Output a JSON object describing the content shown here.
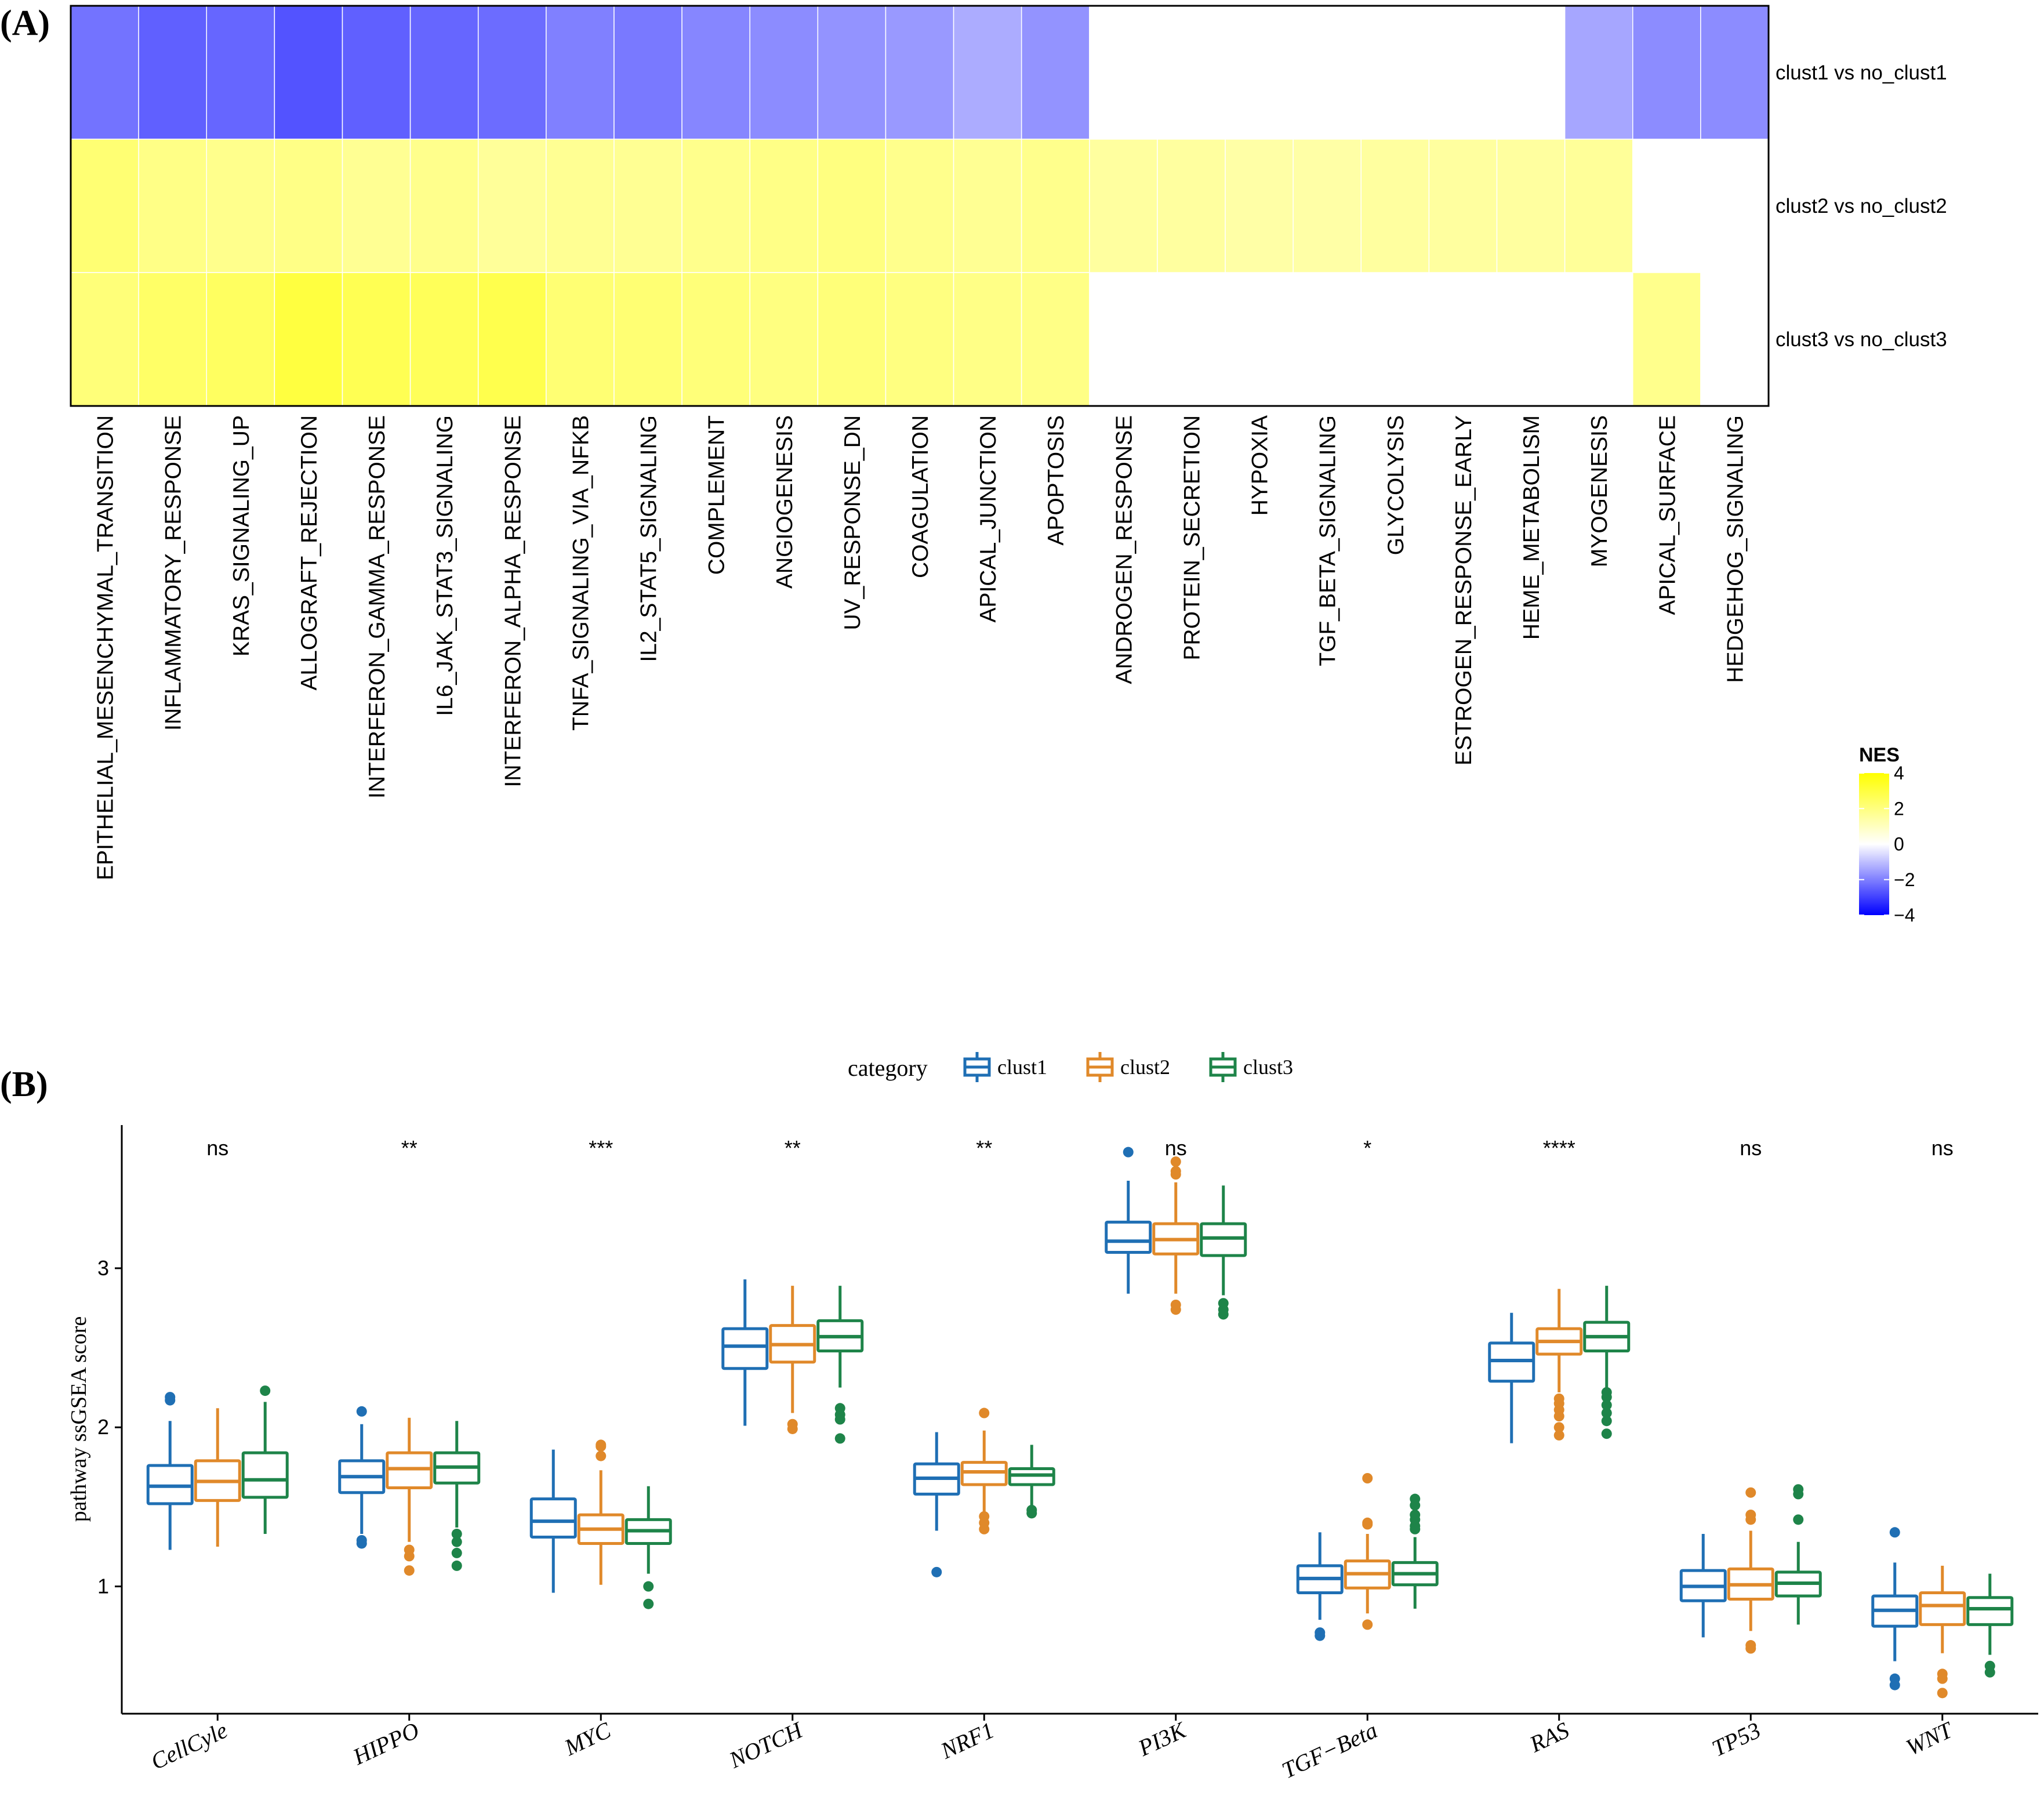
{
  "chart_data": [
    {
      "type": "heatmap",
      "panel_label": "(A)",
      "rows": [
        "clust1 vs no_clust1",
        "clust2 vs no_clust2",
        "clust3 vs no_clust3"
      ],
      "columns": [
        "EPITHELIAL_MESENCHYMAL_TRANSITION",
        "INFLAMMATORY_RESPONSE",
        "KRAS_SIGNALING_UP",
        "ALLOGRAFT_REJECTION",
        "INTERFERON_GAMMA_RESPONSE",
        "IL6_JAK_STAT3_SIGNALING",
        "INTERFERON_ALPHA_RESPONSE",
        "TNFA_SIGNALING_VIA_NFKB",
        "IL2_STAT5_SIGNALING",
        "COMPLEMENT",
        "ANGIOGENESIS",
        "UV_RESPONSE_DN",
        "COAGULATION",
        "APICAL_JUNCTION",
        "APOPTOSIS",
        "ANDROGEN_RESPONSE",
        "PROTEIN_SECRETION",
        "HYPOXIA",
        "TGF_BETA_SIGNALING",
        "GLYCOLYSIS",
        "ESTROGEN_RESPONSE_EARLY",
        "HEME_METABOLISM",
        "MYOGENESIS",
        "APICAL_SURFACE",
        "HEDGEHOG_SIGNALING"
      ],
      "values": [
        [
          -2.2,
          -2.5,
          -2.4,
          -2.7,
          -2.5,
          -2.4,
          -2.3,
          -2.0,
          -2.1,
          -1.9,
          -1.8,
          -1.7,
          -1.6,
          -1.3,
          -1.7,
          null,
          null,
          null,
          null,
          null,
          null,
          null,
          -1.4,
          -1.8,
          -1.8
        ],
        [
          2.2,
          1.9,
          1.8,
          1.9,
          1.7,
          1.8,
          1.6,
          1.7,
          1.7,
          1.8,
          1.9,
          2.0,
          1.8,
          1.7,
          1.8,
          1.5,
          1.5,
          1.4,
          1.4,
          1.5,
          1.5,
          1.5,
          1.6,
          null,
          null
        ],
        [
          2.1,
          2.4,
          2.5,
          3.0,
          2.7,
          2.6,
          2.8,
          2.2,
          2.2,
          2.1,
          2.0,
          2.1,
          2.0,
          1.9,
          1.9,
          null,
          null,
          null,
          null,
          null,
          null,
          null,
          null,
          1.8,
          null
        ]
      ],
      "legend": {
        "title": "NES",
        "ticks": [
          4,
          2,
          0,
          -2,
          -4
        ],
        "tick_labels": [
          "4",
          "2",
          "0",
          "−2",
          "−4"
        ],
        "range": [
          -4,
          4
        ],
        "low_color": "#0000FF",
        "mid_color": "#FFFFFF",
        "high_color": "#FFFF00"
      }
    },
    {
      "type": "box",
      "panel_label": "(B)",
      "ylabel": "pathway ssGSEA score",
      "ylim": [
        0.2,
        3.9
      ],
      "yticks": [
        1,
        2,
        3
      ],
      "legend_title": "category",
      "series": [
        {
          "name": "clust1",
          "color": "#1F6FB4"
        },
        {
          "name": "clust2",
          "color": "#E0892A"
        },
        {
          "name": "clust3",
          "color": "#1E8449"
        }
      ],
      "categories": [
        "CellCyle",
        "HIPPO",
        "MYC",
        "NOTCH",
        "NRF1",
        "PI3K",
        "TGF−Beta",
        "RAS",
        "TP53",
        "WNT"
      ],
      "significance": [
        "ns",
        "**",
        "***",
        "**",
        "**",
        "ns",
        "*",
        "****",
        "ns",
        "ns"
      ],
      "boxes": [
        [
          {
            "min": 1.23,
            "q1": 1.52,
            "median": 1.63,
            "q3": 1.76,
            "max": 2.04,
            "outliers": [
              2.17,
              2.19
            ]
          },
          {
            "min": 1.25,
            "q1": 1.54,
            "median": 1.66,
            "q3": 1.79,
            "max": 2.12,
            "outliers": []
          },
          {
            "min": 1.33,
            "q1": 1.56,
            "median": 1.67,
            "q3": 1.84,
            "max": 2.16,
            "outliers": [
              2.23
            ]
          }
        ],
        [
          {
            "min": 1.33,
            "q1": 1.59,
            "median": 1.69,
            "q3": 1.79,
            "max": 2.02,
            "outliers": [
              1.27,
              1.29,
              2.1
            ]
          },
          {
            "min": 1.28,
            "q1": 1.62,
            "median": 1.74,
            "q3": 1.84,
            "max": 2.06,
            "outliers": [
              1.1,
              1.19,
              1.23
            ]
          },
          {
            "min": 1.37,
            "q1": 1.65,
            "median": 1.75,
            "q3": 1.84,
            "max": 2.04,
            "outliers": [
              1.13,
              1.21,
              1.28,
              1.33
            ]
          }
        ],
        [
          {
            "min": 0.96,
            "q1": 1.31,
            "median": 1.41,
            "q3": 1.55,
            "max": 1.86,
            "outliers": []
          },
          {
            "min": 1.01,
            "q1": 1.27,
            "median": 1.36,
            "q3": 1.45,
            "max": 1.73,
            "outliers": [
              1.82,
              1.88,
              1.89
            ]
          },
          {
            "min": 1.08,
            "q1": 1.27,
            "median": 1.35,
            "q3": 1.42,
            "max": 1.63,
            "outliers": [
              0.89,
              1.0
            ]
          }
        ],
        [
          {
            "min": 2.01,
            "q1": 2.37,
            "median": 2.51,
            "q3": 2.62,
            "max": 2.93,
            "outliers": []
          },
          {
            "min": 2.09,
            "q1": 2.41,
            "median": 2.52,
            "q3": 2.64,
            "max": 2.89,
            "outliers": [
              1.99,
              2.02
            ]
          },
          {
            "min": 2.25,
            "q1": 2.48,
            "median": 2.57,
            "q3": 2.67,
            "max": 2.89,
            "outliers": [
              1.93,
              2.05,
              2.08,
              2.12
            ]
          }
        ],
        [
          {
            "min": 1.35,
            "q1": 1.58,
            "median": 1.68,
            "q3": 1.77,
            "max": 1.97,
            "outliers": [
              1.09
            ]
          },
          {
            "min": 1.47,
            "q1": 1.64,
            "median": 1.72,
            "q3": 1.78,
            "max": 1.98,
            "outliers": [
              1.36,
              1.4,
              1.44,
              2.09
            ]
          },
          {
            "min": 1.51,
            "q1": 1.64,
            "median": 1.7,
            "q3": 1.74,
            "max": 1.89,
            "outliers": [
              1.46,
              1.48
            ]
          }
        ],
        [
          {
            "min": 2.84,
            "q1": 3.1,
            "median": 3.17,
            "q3": 3.29,
            "max": 3.55,
            "outliers": [
              3.73
            ]
          },
          {
            "min": 2.84,
            "q1": 3.09,
            "median": 3.18,
            "q3": 3.28,
            "max": 3.54,
            "outliers": [
              2.74,
              2.77,
              3.59,
              3.61,
              3.67
            ]
          },
          {
            "min": 2.83,
            "q1": 3.08,
            "median": 3.19,
            "q3": 3.28,
            "max": 3.52,
            "outliers": [
              2.71,
              2.74,
              2.78
            ]
          }
        ],
        [
          {
            "min": 0.79,
            "q1": 0.96,
            "median": 1.05,
            "q3": 1.13,
            "max": 1.34,
            "outliers": [
              0.69,
              0.71
            ]
          },
          {
            "min": 0.83,
            "q1": 0.99,
            "median": 1.08,
            "q3": 1.16,
            "max": 1.33,
            "outliers": [
              0.76,
              1.39,
              1.4,
              1.68
            ]
          },
          {
            "min": 0.86,
            "q1": 1.01,
            "median": 1.08,
            "q3": 1.15,
            "max": 1.31,
            "outliers": [
              1.36,
              1.38,
              1.42,
              1.45,
              1.51,
              1.55
            ]
          }
        ],
        [
          {
            "min": 1.9,
            "q1": 2.29,
            "median": 2.42,
            "q3": 2.53,
            "max": 2.72,
            "outliers": []
          },
          {
            "min": 2.22,
            "q1": 2.46,
            "median": 2.54,
            "q3": 2.62,
            "max": 2.87,
            "outliers": [
              1.95,
              2.0,
              2.07,
              2.11,
              2.15,
              2.18
            ]
          },
          {
            "min": 2.24,
            "q1": 2.48,
            "median": 2.57,
            "q3": 2.66,
            "max": 2.89,
            "outliers": [
              1.96,
              2.04,
              2.09,
              2.14,
              2.19,
              2.22
            ]
          }
        ],
        [
          {
            "min": 0.68,
            "q1": 0.91,
            "median": 1.0,
            "q3": 1.1,
            "max": 1.33,
            "outliers": []
          },
          {
            "min": 0.72,
            "q1": 0.92,
            "median": 1.01,
            "q3": 1.11,
            "max": 1.35,
            "outliers": [
              0.61,
              0.63,
              1.42,
              1.45,
              1.59
            ]
          },
          {
            "min": 0.76,
            "q1": 0.94,
            "median": 1.02,
            "q3": 1.09,
            "max": 1.28,
            "outliers": [
              1.42,
              1.58,
              1.61
            ]
          }
        ],
        [
          {
            "min": 0.53,
            "q1": 0.75,
            "median": 0.85,
            "q3": 0.94,
            "max": 1.15,
            "outliers": [
              0.38,
              0.42,
              1.34
            ]
          },
          {
            "min": 0.58,
            "q1": 0.76,
            "median": 0.88,
            "q3": 0.96,
            "max": 1.13,
            "outliers": [
              0.33,
              0.42,
              0.45
            ]
          },
          {
            "min": 0.57,
            "q1": 0.76,
            "median": 0.86,
            "q3": 0.93,
            "max": 1.08,
            "outliers": [
              0.46,
              0.5
            ]
          }
        ]
      ]
    }
  ]
}
